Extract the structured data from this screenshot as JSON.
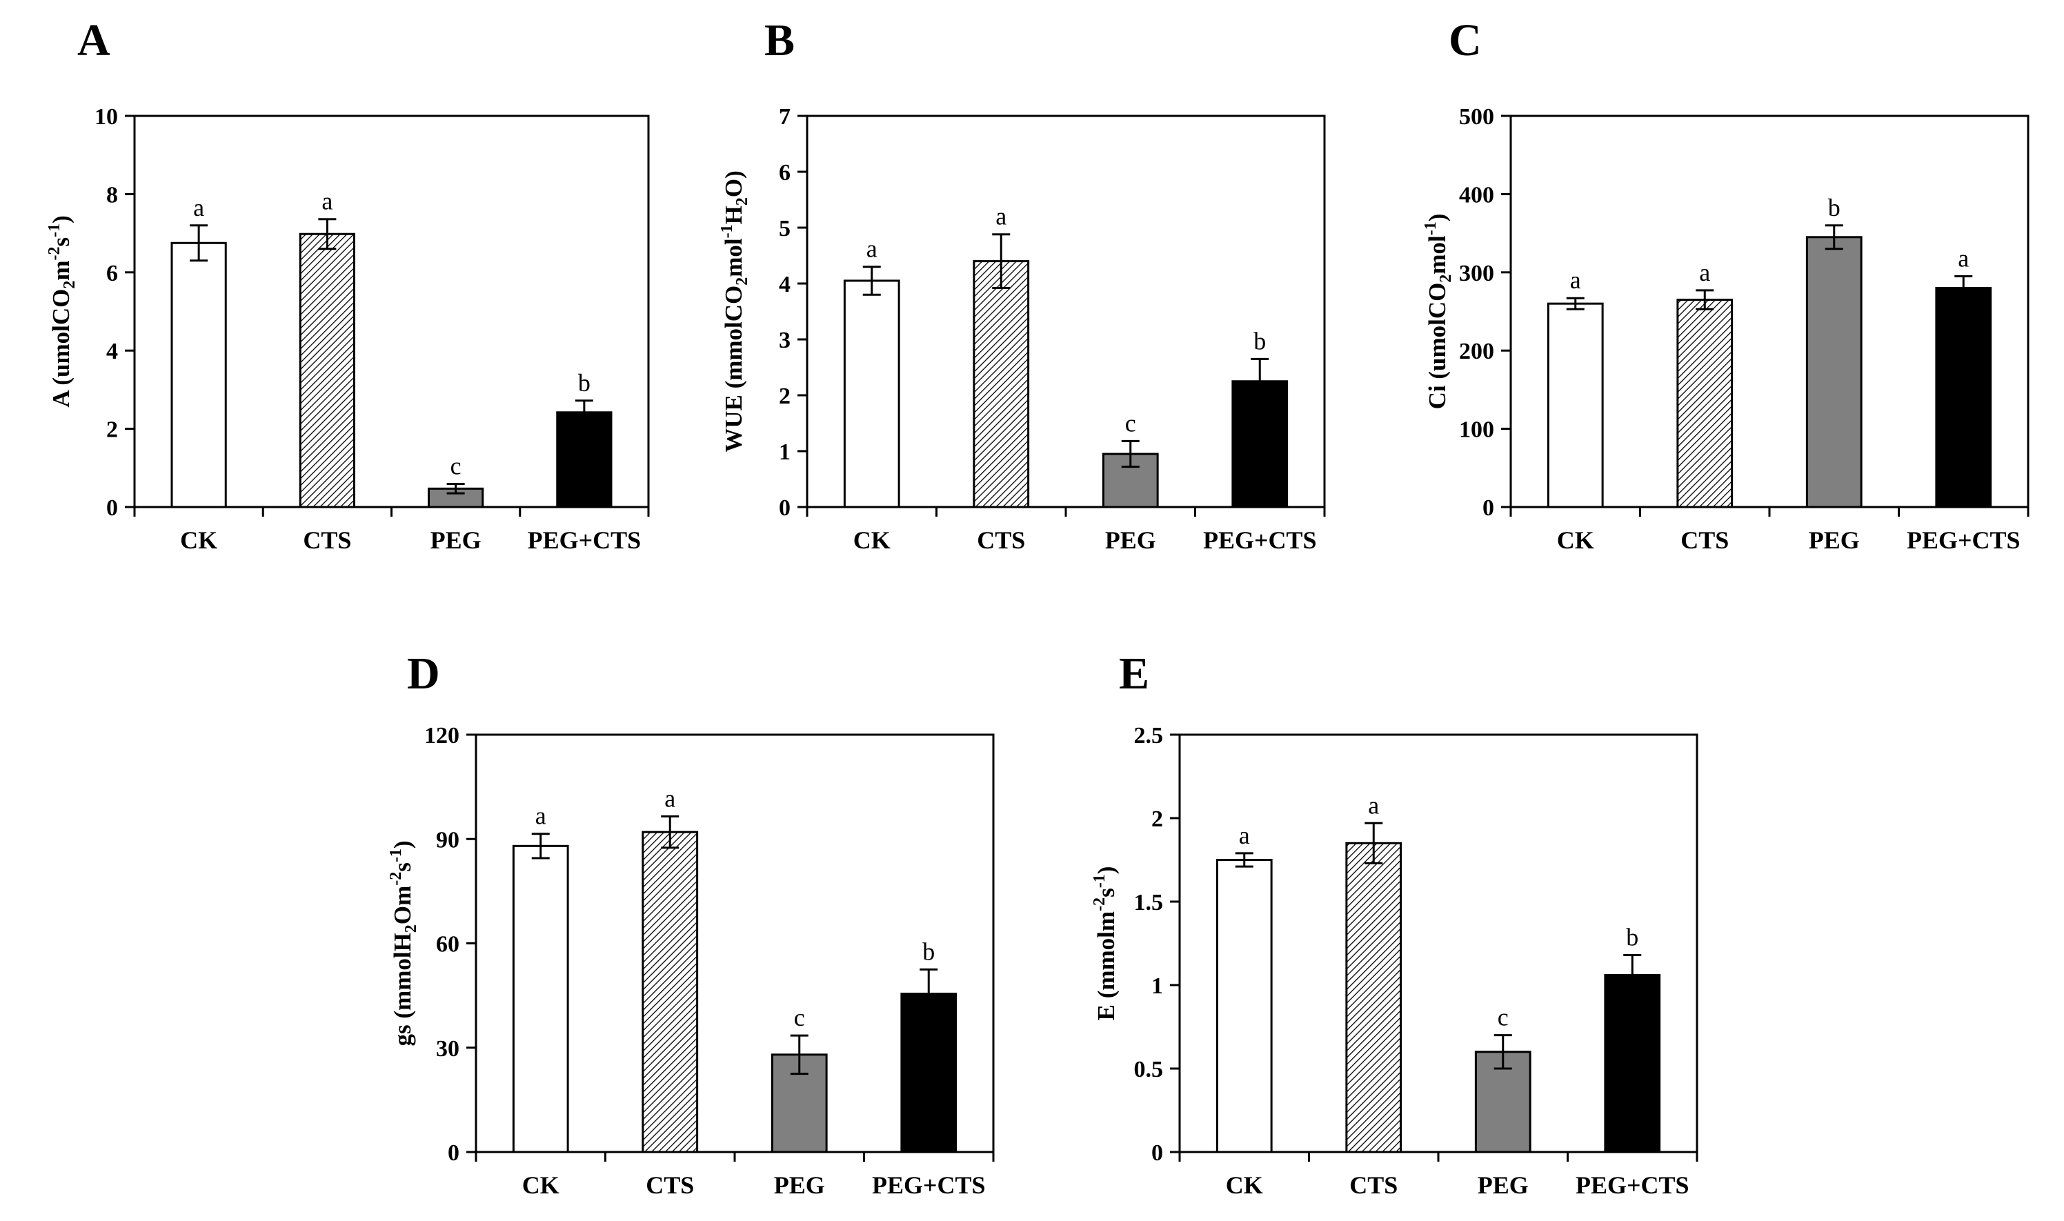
{
  "chart_data": [
    {
      "panel": "A",
      "type": "bar",
      "categories": [
        "CK",
        "CTS",
        "PEG",
        "PEG+CTS"
      ],
      "values": [
        6.75,
        6.98,
        0.47,
        2.42
      ],
      "errors": [
        0.45,
        0.38,
        0.12,
        0.3
      ],
      "significance": [
        "a",
        "a",
        "c",
        "b"
      ],
      "ylabel": {
        "main": "A (umolCO",
        "sub": "2",
        "mid": "m",
        "sup1": "-2",
        "mid2": "s",
        "sup2": "-1",
        "end": ")"
      },
      "ylim": [
        0,
        10
      ],
      "yticks": [
        "0",
        "2",
        "4",
        "6",
        "8",
        "10"
      ]
    },
    {
      "panel": "B",
      "type": "bar",
      "categories": [
        "CK",
        "CTS",
        "PEG",
        "PEG+CTS"
      ],
      "values": [
        4.05,
        4.4,
        0.95,
        2.25
      ],
      "errors": [
        0.25,
        0.48,
        0.23,
        0.4
      ],
      "significance": [
        "a",
        "a",
        "c",
        "b"
      ],
      "ylabel": {
        "main": "WUE (mmolCO",
        "sub": "2",
        "mid": "mol",
        "sup1": "-1",
        "mid2": "H",
        "sub2": "2",
        "end": "O)"
      },
      "ylim": [
        0,
        7
      ],
      "yticks": [
        "0",
        "1",
        "2",
        "3",
        "4",
        "5",
        "6",
        "7"
      ]
    },
    {
      "panel": "C",
      "type": "bar",
      "categories": [
        "CK",
        "CTS",
        "PEG",
        "PEG+CTS"
      ],
      "values": [
        260,
        265,
        345,
        280
      ],
      "errors": [
        7,
        12,
        15,
        15
      ],
      "significance": [
        "a",
        "a",
        "b",
        "a"
      ],
      "ylabel": {
        "main": "Ci (umolCO",
        "sub": "2",
        "mid": "mol",
        "sup1": "-1",
        "end": ")"
      },
      "ylim": [
        0,
        500
      ],
      "yticks": [
        "0",
        "100",
        "200",
        "300",
        "400",
        "500"
      ]
    },
    {
      "panel": "D",
      "type": "bar",
      "categories": [
        "CK",
        "CTS",
        "PEG",
        "PEG+CTS"
      ],
      "values": [
        88,
        92,
        28,
        45.5
      ],
      "errors": [
        3.5,
        4.5,
        5.5,
        7
      ],
      "significance": [
        "a",
        "a",
        "c",
        "b"
      ],
      "ylabel": {
        "main": "gs (mmolH",
        "sub": "2",
        "mid": "Om",
        "sup1": "-2",
        "mid2": "s",
        "sup2": "-1",
        "end": ")"
      },
      "ylim": [
        0,
        120
      ],
      "yticks": [
        "0",
        "30",
        "60",
        "90",
        "120"
      ]
    },
    {
      "panel": "E",
      "type": "bar",
      "categories": [
        "CK",
        "CTS",
        "PEG",
        "PEG+CTS"
      ],
      "values": [
        1.75,
        1.85,
        0.6,
        1.06
      ],
      "errors": [
        0.04,
        0.12,
        0.1,
        0.12
      ],
      "significance": [
        "a",
        "a",
        "c",
        "b"
      ],
      "ylabel": {
        "main": "E (mmolm",
        "sup1": "-2",
        "mid2": "s",
        "sup2": "-1",
        "end": ")"
      },
      "ylim": [
        0,
        2.5
      ],
      "yticks": [
        "0",
        "0.5",
        "1",
        "1.5",
        "2",
        "2.5"
      ]
    }
  ],
  "bar_styles": [
    {
      "fill": "#ffffff",
      "pattern": false
    },
    {
      "fill": "#ffffff",
      "pattern": true
    },
    {
      "fill": "#808080",
      "pattern": false
    },
    {
      "fill": "#000000",
      "pattern": false
    }
  ]
}
